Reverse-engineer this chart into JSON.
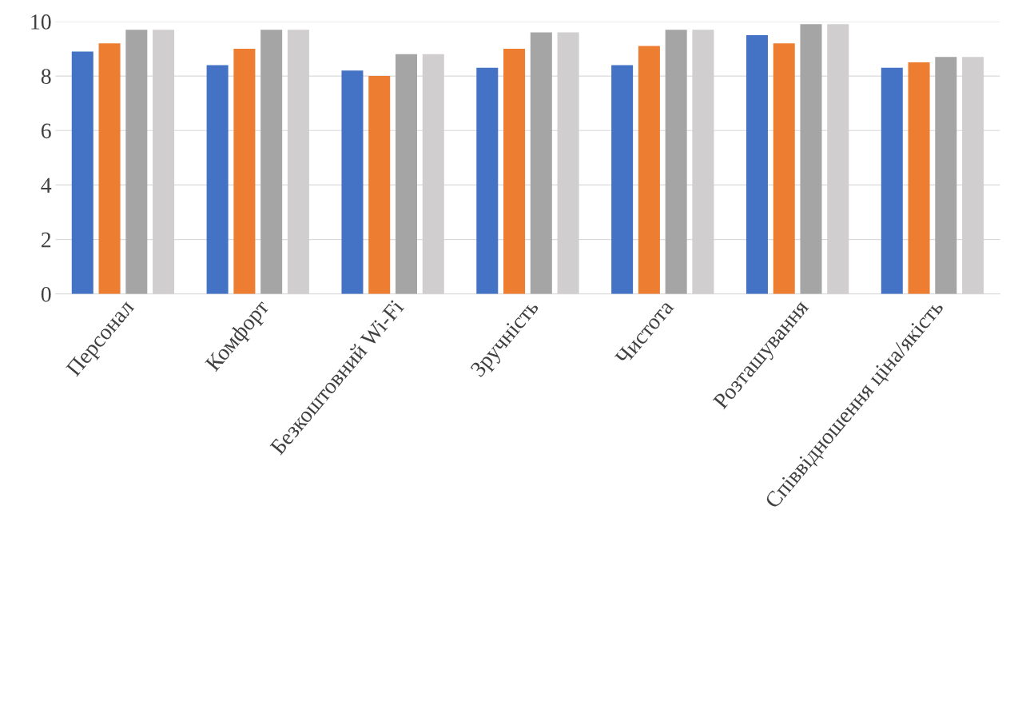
{
  "chart_data": {
    "type": "bar",
    "categories": [
      "Персонал",
      "Комфорт",
      "Безкоштовний Wi-Fi",
      "Зручність",
      "Чистота",
      "Розташування",
      "Співвідношення ціна/якість"
    ],
    "series": [
      {
        "color": "#4472c4",
        "values": [
          8.9,
          8.4,
          8.2,
          8.3,
          8.4,
          9.5,
          8.3
        ]
      },
      {
        "color": "#ed7d31",
        "values": [
          9.2,
          9.0,
          8.0,
          9.0,
          9.1,
          9.2,
          8.5
        ]
      },
      {
        "color": "#a5a5a5",
        "values": [
          9.7,
          9.7,
          8.8,
          9.6,
          9.7,
          9.9,
          8.7
        ]
      },
      {
        "color": "#d0cece",
        "values": [
          9.7,
          9.7,
          8.8,
          9.6,
          9.7,
          9.9,
          8.7
        ]
      }
    ],
    "ylim": [
      0,
      10
    ],
    "yticks": [
      0,
      2,
      4,
      6,
      8,
      10
    ],
    "grid": "y"
  }
}
